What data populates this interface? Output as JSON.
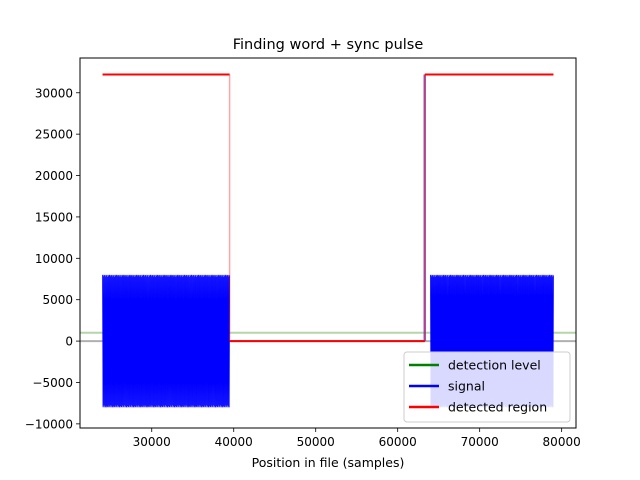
{
  "chart_data": {
    "type": "line",
    "title": "Finding word + sync pulse",
    "xlabel": "Position in file (samples)",
    "ylabel": "",
    "xlim": [
      21250,
      81750
    ],
    "ylim": [
      -10500,
      34200
    ],
    "xticks": [
      30000,
      40000,
      50000,
      60000,
      70000,
      80000
    ],
    "yticks": [
      -10000,
      -5000,
      0,
      5000,
      10000,
      15000,
      20000,
      25000,
      30000
    ],
    "grid": false,
    "legend_position": "lower-right",
    "reference_lines": [
      {
        "y": 0,
        "color": "#b0b0b0"
      },
      {
        "y": 1000,
        "color": "#b5d6a8"
      }
    ],
    "series": [
      {
        "name": "detection level",
        "color": "#008000",
        "legend_only": true
      },
      {
        "name": " signal",
        "color": "#0000ff",
        "bursts": [
          {
            "x_start": 24000,
            "x_end": 39500,
            "amplitude": 8000
          },
          {
            "x_start": 64000,
            "x_end": 79000,
            "amplitude": 8000
          }
        ],
        "pulse": {
          "x": 63300,
          "height": 32200
        }
      },
      {
        "name": " detected region",
        "color": "#ff0000",
        "x": [
          24000,
          39500,
          39500,
          63300,
          63300,
          79000
        ],
        "y": [
          32200,
          32200,
          0,
          0,
          32200,
          32200
        ]
      }
    ]
  }
}
